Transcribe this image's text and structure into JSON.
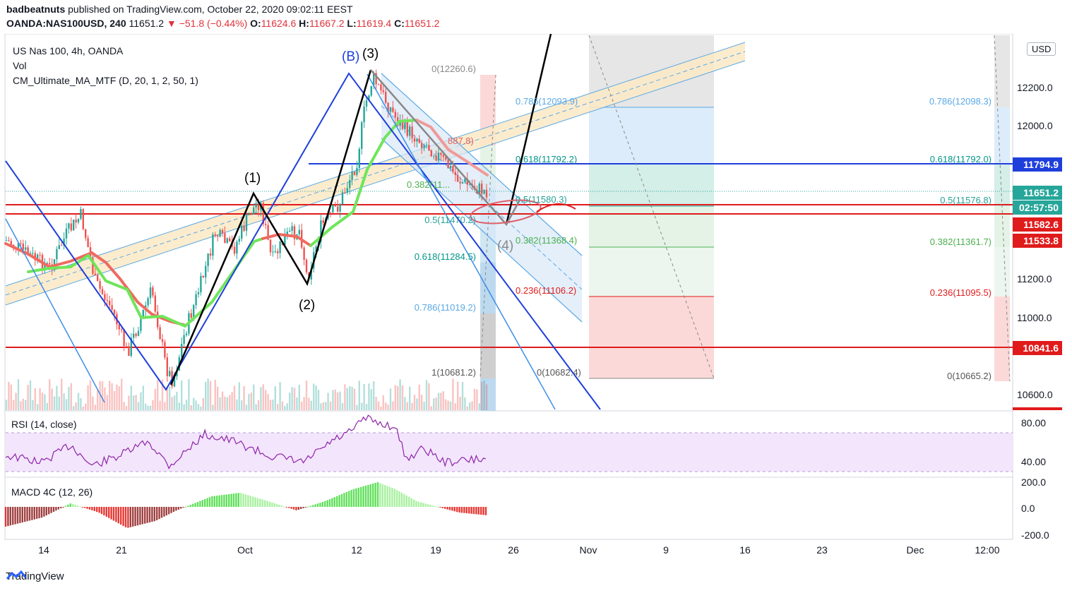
{
  "header": {
    "author": "badbeatnuts",
    "published_text": "published on TradingView.com, October 22, 2020 09:02:11 EEST",
    "symbol": "OANDA:NAS100USD, 240",
    "last": "11651.2",
    "change": "−51.8 (−0.44%)",
    "o_label": "O:",
    "o": "11624.6",
    "h_label": "H:",
    "h": "11667.2",
    "l_label": "L:",
    "l": "11619.4",
    "c_label": "C:",
    "c": "11651.2"
  },
  "legend": {
    "title": "US Nas 100, 4h, OANDA",
    "vol": "Vol",
    "ma": "CM_Ultimate_MA_MTF (D, 20, 1, 2, 50, 1)"
  },
  "currency_button": "USD",
  "price_axis": [
    "12200.0",
    "12000.0",
    "11200.0",
    "11000.0",
    "10600.0"
  ],
  "price_pills": [
    {
      "label": "11794.9",
      "color": "#1e3fdc"
    },
    {
      "label": "11651.2",
      "color": "#26a69a"
    },
    {
      "label": "02:57:50",
      "color": "#26a69a"
    },
    {
      "label": "11582.6",
      "color": "#e01b1b"
    },
    {
      "label": "11533.8",
      "color": "#e01b1b"
    },
    {
      "label": "10841.6",
      "color": "#e01b1b"
    }
  ],
  "time_axis": [
    "14",
    "21",
    "Oct",
    "12",
    "19",
    "26",
    "Nov",
    "9",
    "16",
    "23",
    "Dec",
    "12:00"
  ],
  "wave_labels": [
    "(B)",
    "(3)",
    "(1)",
    "(2)",
    "(4)"
  ],
  "fib_left": [
    "0(12260.6)",
    "0.5(11470.2)",
    "0.618(11284.5)",
    "0.786(11019.2)",
    "1(10681.2)",
    "0.382(11...",
    "887.8)"
  ],
  "fib_mid": [
    "0.786(12093.9)",
    "0.618(11792.2)",
    "0.5(11580.3)",
    "0.382(11368.4)",
    "0.236(11106.2)",
    "0(10682.4)"
  ],
  "fib_right": [
    "0.786(12098.3)",
    "0.618(11792.0)",
    "0.5(11576.8)",
    "0.382(11361.7)",
    "0.236(11095.5)",
    "0(10665.2)"
  ],
  "rsi": {
    "label": "RSI (14, close)",
    "axis": [
      "80.00",
      "40.00"
    ]
  },
  "macd": {
    "label": "MACD 4C (12, 26)",
    "axis": [
      "200.0",
      "0.0",
      "-200.0"
    ]
  },
  "footer_brand": "TradingView",
  "colors": {
    "up": "#26a69a",
    "down": "#ef5350",
    "blue_line": "#1e3fdc",
    "red_line": "#e01b1b"
  },
  "chart_data": {
    "type": "line",
    "title": "US Nas 100, 4h, OANDA",
    "price_levels": [
      11794.9,
      11651.2,
      11582.6,
      11533.8,
      10841.6
    ],
    "wave_points": [
      {
        "label": "(1)",
        "price": 11700
      },
      {
        "label": "(2)",
        "price": 11170
      },
      {
        "label": "(B)",
        "price": 12270
      },
      {
        "label": "(3)",
        "price": 12290
      },
      {
        "label": "(4)",
        "price": 11470
      }
    ],
    "ylim": [
      10500,
      12300
    ]
  }
}
